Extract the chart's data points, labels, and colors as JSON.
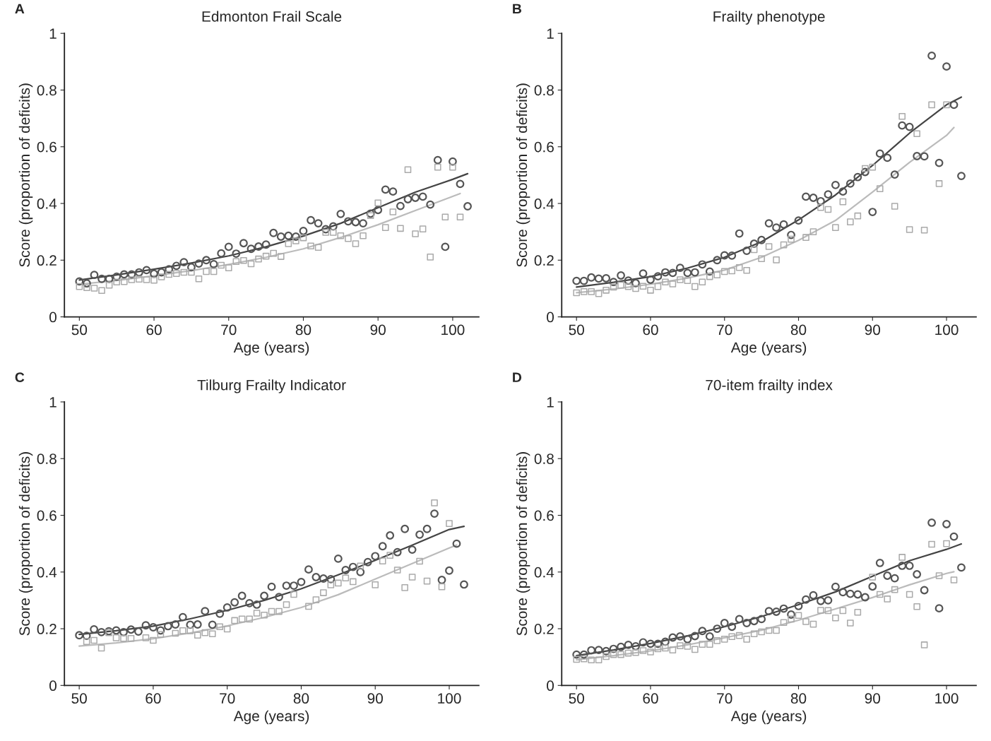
{
  "chart_data": [
    {
      "type": "scatter",
      "title": "Edmonton Frail Scale",
      "annotations": [
        "A"
      ],
      "xlabel": "Age (years)",
      "ylabel": "Score (proportion of deficits)",
      "xlim": [
        48,
        103.5
      ],
      "ylim": [
        0,
        1
      ],
      "xticks": [
        50,
        60,
        70,
        80,
        90,
        100
      ],
      "yticks": [
        0,
        0.2,
        0.4,
        0.6,
        0.8,
        1
      ],
      "grid": false,
      "x": [
        50,
        51,
        52,
        53,
        54,
        55,
        56,
        57,
        58,
        59,
        60,
        61,
        62,
        63,
        64,
        65,
        66,
        67,
        68,
        69,
        70,
        71,
        72,
        73,
        74,
        75,
        76,
        77,
        78,
        79,
        80,
        81,
        82,
        83,
        84,
        85,
        86,
        87,
        88,
        89,
        90,
        91,
        92,
        93,
        94,
        95,
        96,
        97,
        98,
        99,
        100,
        101,
        102
      ],
      "series": [
        {
          "marker": "circle",
          "color": "#555555",
          "values": [
            0.125,
            0.118,
            0.148,
            0.134,
            0.134,
            0.142,
            0.15,
            0.15,
            0.157,
            0.165,
            0.152,
            0.157,
            0.168,
            0.18,
            0.193,
            0.175,
            0.188,
            0.2,
            0.186,
            0.224,
            0.247,
            0.223,
            0.26,
            0.24,
            0.248,
            0.255,
            0.296,
            0.283,
            0.286,
            0.283,
            0.303,
            0.341,
            0.33,
            0.309,
            0.319,
            0.363,
            0.337,
            0.334,
            0.33,
            0.364,
            0.377,
            0.449,
            0.442,
            0.391,
            0.415,
            0.42,
            0.424,
            0.396,
            0.553,
            0.247,
            0.548,
            0.469,
            0.39
          ]
        },
        {
          "marker": "square",
          "color": "#aaaaaa",
          "values": [
            0.107,
            0.103,
            0.101,
            0.093,
            0.112,
            0.123,
            0.124,
            0.131,
            0.133,
            0.131,
            0.129,
            0.141,
            0.15,
            0.153,
            0.157,
            0.157,
            0.134,
            0.16,
            0.16,
            0.182,
            0.173,
            0.195,
            0.199,
            0.187,
            0.204,
            0.214,
            0.224,
            0.213,
            0.258,
            0.268,
            0.279,
            0.25,
            0.245,
            0.298,
            0.298,
            0.286,
            0.276,
            0.258,
            0.286,
            0.357,
            0.402,
            0.315,
            0.37,
            0.312,
            0.519,
            0.293,
            0.31,
            0.211,
            0.528,
            0.352,
            0.528,
            0.352,
            null
          ]
        },
        {
          "type": "line",
          "marker": "none",
          "line_style": "solid",
          "color": "#444444",
          "x": [
            50,
            55,
            60,
            65,
            70,
            75,
            80,
            85,
            90,
            95,
            100,
            102
          ],
          "values": [
            0.13,
            0.148,
            0.168,
            0.19,
            0.215,
            0.247,
            0.285,
            0.33,
            0.385,
            0.44,
            0.485,
            0.505
          ]
        },
        {
          "type": "line",
          "marker": "none",
          "line_style": "solid",
          "color": "#bbbbbb",
          "x": [
            50,
            55,
            60,
            65,
            70,
            75,
            80,
            85,
            90,
            95,
            100,
            101
          ],
          "values": [
            0.115,
            0.128,
            0.145,
            0.163,
            0.185,
            0.21,
            0.24,
            0.28,
            0.325,
            0.375,
            0.425,
            0.435
          ]
        }
      ]
    },
    {
      "type": "scatter",
      "title": "Frailty phenotype",
      "annotations": [
        "B"
      ],
      "xlabel": "Age (years)",
      "ylabel": "Score (proportion of deficits)",
      "xlim": [
        48,
        104
      ],
      "ylim": [
        0,
        1
      ],
      "xticks": [
        50,
        60,
        70,
        80,
        90,
        100
      ],
      "yticks": [
        0,
        0.2,
        0.4,
        0.6,
        0.8,
        1
      ],
      "grid": false,
      "x": [
        50,
        51,
        52,
        53,
        54,
        55,
        56,
        57,
        58,
        59,
        60,
        61,
        62,
        63,
        64,
        65,
        66,
        67,
        68,
        69,
        70,
        71,
        72,
        73,
        74,
        75,
        76,
        77,
        78,
        79,
        80,
        81,
        82,
        83,
        84,
        85,
        86,
        87,
        88,
        89,
        90,
        91,
        92,
        93,
        94,
        95,
        96,
        97,
        98,
        99,
        100,
        101,
        102
      ],
      "series": [
        {
          "marker": "circle",
          "color": "#555555",
          "values": [
            0.127,
            0.127,
            0.139,
            0.135,
            0.136,
            0.123,
            0.146,
            0.128,
            0.119,
            0.153,
            0.131,
            0.143,
            0.157,
            0.155,
            0.173,
            0.155,
            0.157,
            0.185,
            0.16,
            0.2,
            0.217,
            0.216,
            0.294,
            0.233,
            0.258,
            0.271,
            0.33,
            0.315,
            0.326,
            0.289,
            0.34,
            0.424,
            0.42,
            0.408,
            0.432,
            0.465,
            0.442,
            0.47,
            0.493,
            0.511,
            0.37,
            0.576,
            0.561,
            0.502,
            0.675,
            0.67,
            0.567,
            0.566,
            0.921,
            0.543,
            0.883,
            0.748,
            0.497
          ]
        },
        {
          "marker": "square",
          "color": "#aaaaaa",
          "values": [
            0.085,
            0.089,
            0.089,
            0.082,
            0.094,
            0.105,
            0.112,
            0.107,
            0.1,
            0.108,
            0.094,
            0.107,
            0.123,
            0.116,
            0.131,
            0.128,
            0.107,
            0.123,
            0.142,
            0.148,
            0.16,
            0.162,
            0.174,
            0.164,
            0.237,
            0.205,
            0.248,
            0.201,
            0.254,
            0.274,
            null,
            0.28,
            0.3,
            0.386,
            0.379,
            0.315,
            0.406,
            0.335,
            0.356,
            0.523,
            0.528,
            0.452,
            null,
            0.39,
            0.707,
            0.308,
            0.646,
            0.306,
            0.748,
            0.47,
            0.748,
            null,
            null
          ]
        },
        {
          "type": "line",
          "marker": "none",
          "line_style": "solid",
          "color": "#444444",
          "x": [
            50,
            55,
            60,
            65,
            70,
            75,
            80,
            85,
            90,
            95,
            100,
            102
          ],
          "values": [
            0.105,
            0.122,
            0.142,
            0.172,
            0.21,
            0.265,
            0.342,
            0.43,
            0.534,
            0.648,
            0.748,
            0.775
          ]
        },
        {
          "type": "line",
          "marker": "none",
          "line_style": "solid",
          "color": "#bbbbbb",
          "x": [
            50,
            55,
            60,
            65,
            70,
            75,
            80,
            85,
            90,
            95,
            100,
            101
          ],
          "values": [
            0.085,
            0.098,
            0.115,
            0.137,
            0.165,
            0.21,
            0.27,
            0.34,
            0.44,
            0.545,
            0.64,
            0.668
          ]
        }
      ]
    },
    {
      "type": "scatter",
      "title": "Tilburg Frailty Indicator",
      "annotations": [
        "C"
      ],
      "xlabel": "Age (years)",
      "ylabel": "Score (proportion of deficits)",
      "xlim": [
        48,
        104
      ],
      "ylim": [
        0,
        1
      ],
      "xticks": [
        50,
        60,
        70,
        80,
        90,
        100
      ],
      "yticks": [
        0,
        0.2,
        0.4,
        0.6,
        0.8,
        1
      ],
      "grid": false,
      "x": [
        50,
        51,
        52,
        53,
        54,
        55,
        56,
        57,
        58,
        59,
        60,
        61,
        62,
        63,
        64,
        65,
        66,
        67,
        68,
        69,
        70,
        71,
        72,
        73,
        74,
        75,
        76,
        77,
        78,
        79,
        80,
        81,
        82,
        83,
        84,
        85,
        86,
        87,
        88,
        89,
        90,
        91,
        92,
        93,
        94,
        95,
        96,
        97,
        98,
        99,
        100,
        101,
        102
      ],
      "series": [
        {
          "marker": "circle",
          "color": "#555555",
          "values": [
            0.177,
            0.175,
            0.198,
            0.188,
            0.191,
            0.194,
            0.188,
            0.197,
            0.19,
            0.212,
            0.205,
            0.194,
            0.209,
            0.215,
            0.241,
            0.214,
            0.215,
            0.262,
            0.214,
            0.253,
            0.275,
            0.293,
            0.316,
            0.29,
            0.285,
            0.316,
            0.348,
            0.312,
            0.352,
            0.352,
            0.365,
            0.409,
            0.382,
            0.377,
            0.375,
            0.447,
            0.407,
            0.418,
            0.4,
            0.435,
            0.456,
            0.491,
            0.529,
            0.47,
            0.552,
            0.479,
            0.532,
            0.552,
            0.606,
            0.372,
            0.405,
            0.5,
            0.356
          ]
        },
        {
          "marker": "square",
          "color": "#aaaaaa",
          "values": [
            null,
            0.155,
            0.159,
            0.132,
            0.186,
            0.168,
            0.166,
            0.166,
            null,
            0.168,
            0.159,
            0.18,
            null,
            0.184,
            0.193,
            0.193,
            0.177,
            0.186,
            0.182,
            0.207,
            0.199,
            0.229,
            0.234,
            0.234,
            0.255,
            0.248,
            0.261,
            0.261,
            0.285,
            0.321,
            null,
            0.279,
            0.302,
            0.327,
            0.355,
            0.361,
            0.379,
            0.366,
            0.421,
            null,
            0.355,
            0.439,
            0.459,
            0.407,
            0.345,
            0.382,
            0.438,
            0.368,
            0.644,
            0.348,
            0.571,
            null,
            null
          ]
        },
        {
          "type": "line",
          "marker": "none",
          "line_style": "solid",
          "color": "#444444",
          "x": [
            50,
            55,
            60,
            65,
            70,
            75,
            80,
            85,
            90,
            95,
            100,
            102
          ],
          "values": [
            0.18,
            0.193,
            0.209,
            0.235,
            0.265,
            0.3,
            0.341,
            0.39,
            0.441,
            0.495,
            0.55,
            0.561
          ]
        },
        {
          "type": "line",
          "marker": "none",
          "line_style": "solid",
          "color": "#bbbbbb",
          "x": [
            50,
            55,
            60,
            65,
            70,
            75,
            80,
            85,
            90,
            95,
            100,
            101
          ],
          "values": [
            0.139,
            0.15,
            0.165,
            0.185,
            0.21,
            0.24,
            0.275,
            0.32,
            0.375,
            0.43,
            0.485,
            0.495
          ]
        }
      ]
    },
    {
      "type": "scatter",
      "title": "70-item frailty index",
      "annotations": [
        "D"
      ],
      "xlabel": "Age (years)",
      "ylabel": "Score (proportion of deficits)",
      "xlim": [
        48,
        104
      ],
      "ylim": [
        0,
        1
      ],
      "xticks": [
        50,
        60,
        70,
        80,
        90,
        100
      ],
      "yticks": [
        0,
        0.2,
        0.4,
        0.6,
        0.8,
        1
      ],
      "grid": false,
      "x": [
        50,
        51,
        52,
        53,
        54,
        55,
        56,
        57,
        58,
        59,
        60,
        61,
        62,
        63,
        64,
        65,
        66,
        67,
        68,
        69,
        70,
        71,
        72,
        73,
        74,
        75,
        76,
        77,
        78,
        79,
        80,
        81,
        82,
        83,
        84,
        85,
        86,
        87,
        88,
        89,
        90,
        91,
        92,
        93,
        94,
        95,
        96,
        97,
        98,
        99,
        100,
        101,
        102
      ],
      "series": [
        {
          "marker": "circle",
          "color": "#555555",
          "values": [
            0.109,
            0.109,
            0.124,
            0.125,
            0.121,
            0.129,
            0.136,
            0.143,
            0.138,
            0.152,
            0.147,
            0.147,
            0.154,
            0.169,
            0.173,
            0.163,
            0.174,
            0.192,
            0.173,
            0.2,
            0.22,
            0.207,
            0.234,
            0.22,
            0.227,
            0.234,
            0.262,
            0.26,
            0.271,
            0.25,
            0.28,
            0.303,
            0.318,
            0.298,
            0.3,
            0.348,
            0.329,
            0.323,
            0.321,
            0.311,
            0.349,
            0.432,
            0.387,
            0.378,
            0.422,
            0.422,
            0.392,
            0.336,
            0.574,
            0.272,
            0.569,
            0.525,
            0.416
          ]
        },
        {
          "marker": "square",
          "color": "#aaaaaa",
          "values": [
            0.092,
            0.094,
            0.09,
            0.09,
            0.102,
            0.109,
            0.109,
            0.114,
            0.116,
            0.123,
            0.118,
            0.129,
            0.132,
            0.125,
            0.14,
            0.138,
            0.127,
            0.145,
            0.145,
            0.158,
            0.163,
            0.172,
            0.176,
            0.163,
            0.182,
            0.189,
            0.194,
            0.194,
            0.222,
            0.234,
            0.247,
            0.225,
            0.216,
            0.265,
            0.264,
            0.238,
            0.264,
            0.22,
            0.258,
            null,
            0.382,
            0.321,
            0.305,
            0.338,
            0.452,
            0.321,
            0.278,
            0.143,
            0.498,
            0.387,
            0.5,
            0.372,
            null
          ]
        },
        {
          "type": "line",
          "marker": "none",
          "line_style": "solid",
          "color": "#444444",
          "x": [
            50,
            55,
            60,
            65,
            70,
            75,
            80,
            85,
            90,
            95,
            100,
            102
          ],
          "values": [
            0.105,
            0.125,
            0.148,
            0.175,
            0.207,
            0.243,
            0.285,
            0.33,
            0.385,
            0.44,
            0.48,
            0.499
          ]
        },
        {
          "type": "line",
          "marker": "none",
          "line_style": "solid",
          "color": "#bbbbbb",
          "x": [
            50,
            55,
            60,
            65,
            70,
            75,
            80,
            85,
            90,
            95,
            100,
            101
          ],
          "values": [
            0.09,
            0.105,
            0.122,
            0.143,
            0.168,
            0.195,
            0.23,
            0.27,
            0.31,
            0.355,
            0.395,
            0.401
          ]
        }
      ]
    }
  ]
}
